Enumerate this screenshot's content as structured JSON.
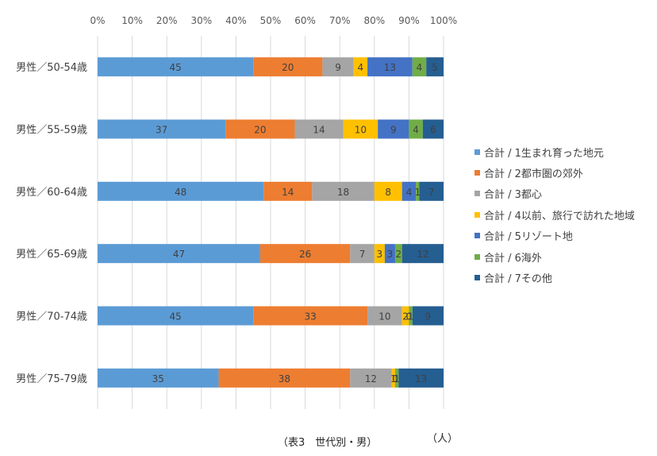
{
  "chart_data": {
    "type": "bar",
    "orientation": "horizontal",
    "stacked": "percent",
    "xlim": [
      0,
      100
    ],
    "x_ticks": [
      "0%",
      "10%",
      "20%",
      "30%",
      "40%",
      "50%",
      "60%",
      "70%",
      "80%",
      "90%",
      "100%"
    ],
    "categories": [
      "男性／50-54歳",
      "男性／55-59歳",
      "男性／60-64歳",
      "男性／65-69歳",
      "男性／70-74歳",
      "男性／75-79歳"
    ],
    "series": [
      {
        "name": "合計 / 1生まれ育った地元",
        "color": "#5B9BD5",
        "values": [
          45,
          37,
          48,
          47,
          45,
          35
        ]
      },
      {
        "name": "合計 / 2都市圏の郊外",
        "color": "#ED7D31",
        "values": [
          20,
          20,
          14,
          26,
          33,
          38
        ]
      },
      {
        "name": "合計 / 3都心",
        "color": "#A5A5A5",
        "values": [
          9,
          14,
          18,
          7,
          10,
          12
        ]
      },
      {
        "name": "合計 / 4以前、旅行で訪れた地域",
        "color": "#FFC000",
        "values": [
          4,
          10,
          8,
          3,
          2,
          1
        ]
      },
      {
        "name": "合計 / 5リゾート地",
        "color": "#4472C4",
        "values": [
          13,
          9,
          4,
          3,
          0,
          0
        ]
      },
      {
        "name": "合計 / 6海外",
        "color": "#70AD47",
        "values": [
          4,
          4,
          1,
          2,
          1,
          1
        ]
      },
      {
        "name": "合計 / 7その他",
        "color": "#255E91",
        "values": [
          5,
          6,
          7,
          12,
          9,
          13
        ]
      }
    ],
    "grid": true,
    "legend_position": "right",
    "title": "（表3　世代別・男）",
    "unit_label": "（人）"
  }
}
